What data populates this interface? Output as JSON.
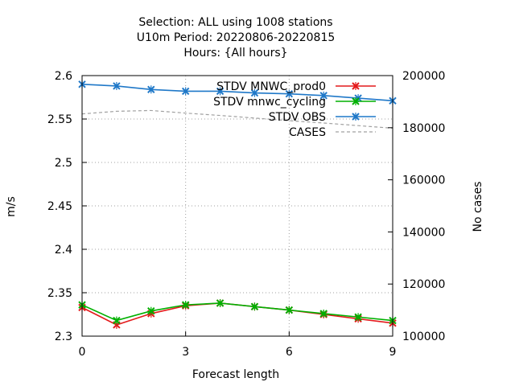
{
  "chart_data": {
    "type": "line",
    "title": [
      "Selection: ALL using  1008 stations",
      "U10m   Period: 20220806-20220815",
      "Hours: {All hours}"
    ],
    "xlabel": "Forecast length",
    "ylabel": "m/s",
    "y2label": "No cases",
    "xlim": [
      0,
      9
    ],
    "ylim": [
      2.3,
      2.6
    ],
    "y2lim": [
      100000,
      200000
    ],
    "xticks": [
      "0",
      "3",
      "6",
      "9"
    ],
    "yticks": [
      "2.3",
      "2.35",
      "2.4",
      "2.45",
      "2.5",
      "2.55",
      "2.6"
    ],
    "y2ticks": [
      "100000",
      "120000",
      "140000",
      "160000",
      "180000",
      "200000"
    ],
    "grid": true,
    "legend_position": "top-right",
    "x": [
      0,
      1,
      2,
      3,
      4,
      5,
      6,
      7,
      8,
      9
    ],
    "series": [
      {
        "name": "STDV MNWC_prod0",
        "axis": "y1",
        "color": "#e41a1c",
        "marker": "x",
        "values": [
          2.333,
          2.313,
          2.326,
          2.335,
          2.338,
          2.334,
          2.33,
          2.325,
          2.32,
          2.315
        ]
      },
      {
        "name": "STDV mnwc_cycling",
        "axis": "y1",
        "color": "#00b000",
        "marker": "x",
        "values": [
          2.336,
          2.318,
          2.329,
          2.336,
          2.338,
          2.334,
          2.33,
          2.326,
          2.322,
          2.318
        ]
      },
      {
        "name": "STDV OBS",
        "axis": "y1",
        "color": "#1f78c8",
        "marker": "x",
        "values": [
          2.59,
          2.588,
          2.584,
          2.582,
          2.582,
          2.58,
          2.579,
          2.577,
          2.574,
          2.571
        ]
      },
      {
        "name": "CASES",
        "axis": "y2",
        "color": "#a0a0a0",
        "marker": "none",
        "dashed": true,
        "values": [
          185300,
          186300,
          186600,
          185600,
          184700,
          183700,
          182700,
          181800,
          180800,
          179800
        ]
      }
    ]
  }
}
